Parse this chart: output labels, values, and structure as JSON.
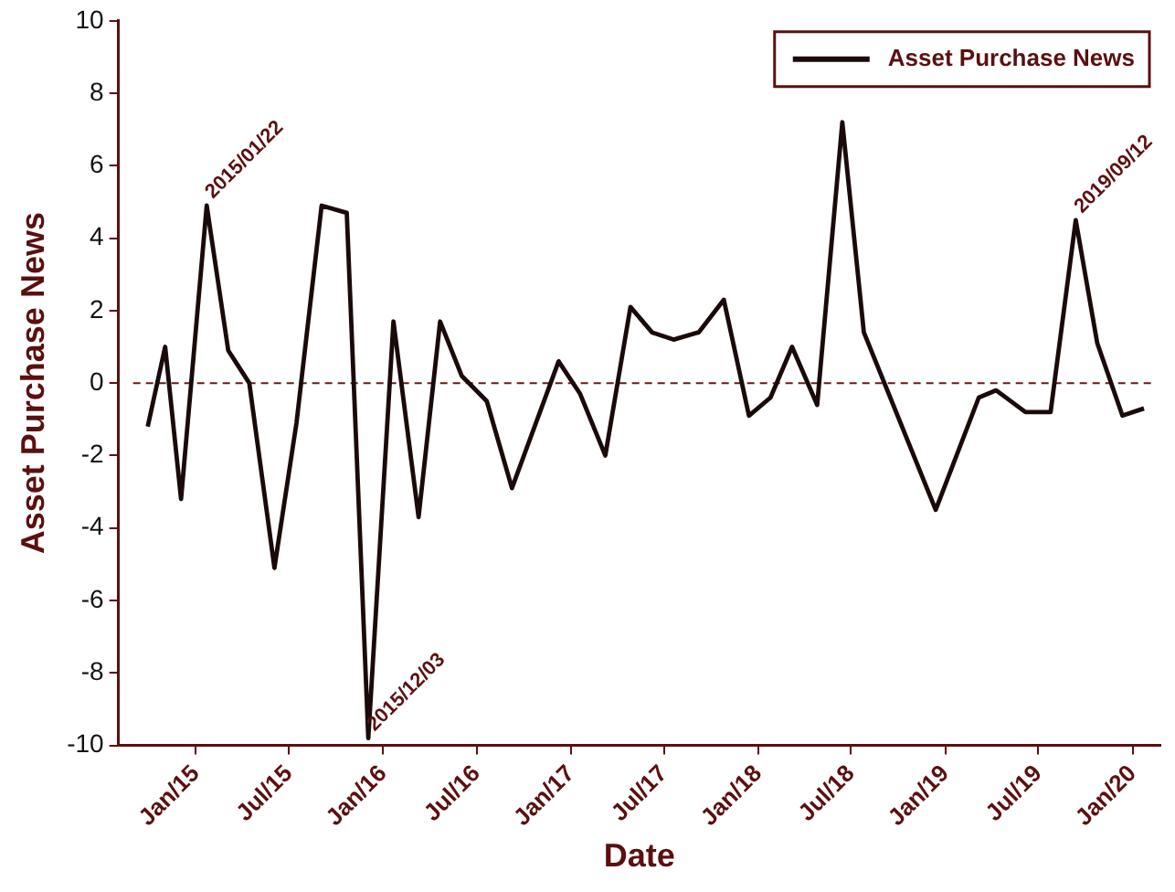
{
  "chart_data": {
    "type": "line",
    "xlabel": "Date",
    "ylabel": "Asset Purchase News",
    "x": [
      "2014-09-29",
      "2014-11-02",
      "2014-12-03",
      "2015-01-22",
      "2015-03-05",
      "2015-04-15",
      "2015-06-03",
      "2015-07-16",
      "2015-09-03",
      "2015-10-22",
      "2015-12-03",
      "2016-01-21",
      "2016-03-10",
      "2016-04-21",
      "2016-06-02",
      "2016-07-21",
      "2016-09-08",
      "2016-12-08",
      "2017-01-19",
      "2017-03-09",
      "2017-04-27",
      "2017-06-08",
      "2017-07-20",
      "2017-09-07",
      "2017-10-26",
      "2017-12-14",
      "2018-01-25",
      "2018-03-08",
      "2018-04-26",
      "2018-06-14",
      "2018-07-26",
      "2018-12-13",
      "2019-03-07",
      "2019-04-10",
      "2019-06-06",
      "2019-07-25",
      "2019-09-12",
      "2019-10-24",
      "2019-12-12",
      "2020-01-23"
    ],
    "series": [
      {
        "name": "Asset Purchase News",
        "color": "#1a0a0a",
        "values": [
          -1.2,
          1.0,
          -3.2,
          4.9,
          0.9,
          0.0,
          -5.1,
          -1.1,
          4.9,
          4.7,
          -9.8,
          1.7,
          -3.7,
          1.7,
          0.2,
          -0.5,
          -2.9,
          0.6,
          -0.3,
          -2.0,
          2.1,
          1.4,
          1.2,
          1.4,
          2.3,
          -0.9,
          -0.4,
          1.0,
          -0.6,
          7.2,
          1.4,
          -3.5,
          -0.4,
          -0.2,
          -0.8,
          -0.8,
          4.5,
          1.1,
          -0.9,
          -0.7
        ]
      }
    ],
    "xlim": [
      "2014-08-03",
      "2020-02-24"
    ],
    "xticks": [
      {
        "value": "2015-01",
        "label": "Jan/15"
      },
      {
        "value": "2015-07",
        "label": "Jul/15"
      },
      {
        "value": "2016-01",
        "label": "Jan/16"
      },
      {
        "value": "2016-07",
        "label": "Jul/16"
      },
      {
        "value": "2017-01",
        "label": "Jan/17"
      },
      {
        "value": "2017-07",
        "label": "Jul/17"
      },
      {
        "value": "2018-01",
        "label": "Jan/18"
      },
      {
        "value": "2018-07",
        "label": "Jul/18"
      },
      {
        "value": "2019-01",
        "label": "Jan/19"
      },
      {
        "value": "2019-07",
        "label": "Jul/19"
      },
      {
        "value": "2020-01",
        "label": "Jan/20"
      }
    ],
    "ylim": [
      -10,
      10
    ],
    "yticks": [
      -10,
      -8,
      -6,
      -4,
      -2,
      0,
      2,
      4,
      6,
      8,
      10
    ],
    "ref_lines": [
      {
        "axis": "y",
        "value": 0,
        "color": "#6b1a1a",
        "line_style": "dashed"
      }
    ],
    "annotations": [
      {
        "text": "2015/01/22",
        "x": "2015-01-22",
        "y": 4.9
      },
      {
        "text": "2015/12/03",
        "x": "2015-12-03",
        "y": -9.8
      },
      {
        "text": "2019/09/12",
        "x": "2019-09-12",
        "y": 4.5
      }
    ],
    "legend": "top right",
    "grid": false,
    "marker": "none",
    "line_style": "solid"
  }
}
